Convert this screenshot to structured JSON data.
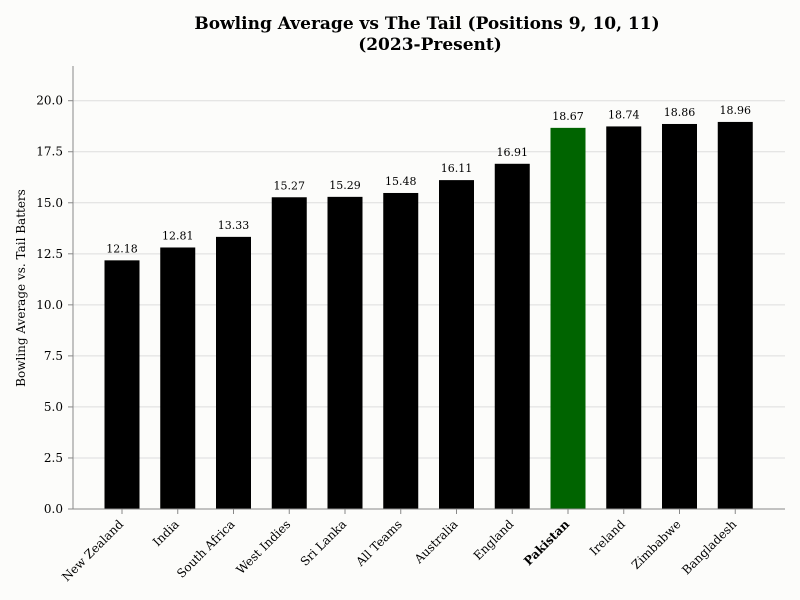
{
  "chart_data": {
    "type": "bar",
    "title": [
      "Bowling Average vs The Tail (Positions 9, 10, 11)",
      "(2023-Present)"
    ],
    "xlabel": "",
    "ylabel": "Bowling Average vs. Tail Batters",
    "categories": [
      "New Zealand",
      "India",
      "South Africa",
      "West Indies",
      "Sri Lanka",
      "All Teams",
      "Australia",
      "England",
      "Pakistan",
      "Ireland",
      "Zimbabwe",
      "Bangladesh"
    ],
    "values": [
      12.18,
      12.81,
      13.33,
      15.27,
      15.29,
      15.48,
      16.11,
      16.91,
      18.67,
      18.74,
      18.86,
      18.96
    ],
    "value_labels": [
      "12.18",
      "12.81",
      "13.33",
      "15.27",
      "15.29",
      "15.48",
      "16.11",
      "16.91",
      "18.67",
      "18.74",
      "18.86",
      "18.96"
    ],
    "yticks": [
      0.0,
      2.5,
      5.0,
      7.5,
      10.0,
      12.5,
      15.0,
      17.5,
      20.0
    ],
    "ytick_labels": [
      "0.0",
      "2.5",
      "5.0",
      "7.5",
      "10.0",
      "12.5",
      "15.0",
      "17.5",
      "20.0"
    ],
    "ylim": [
      0,
      21.7
    ],
    "grid": "horizontal",
    "highlight": {
      "category": "Pakistan",
      "color": "#006400"
    },
    "bar_color": "#000000",
    "grid_color": "#dddddd",
    "axis_color": "#888888"
  }
}
